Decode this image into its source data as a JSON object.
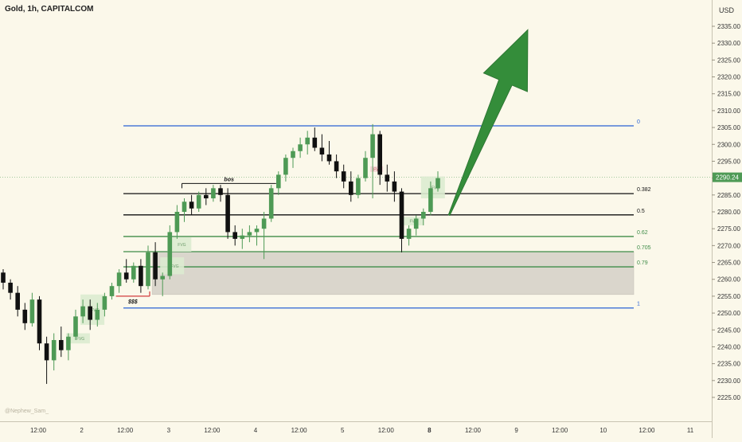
{
  "header": {
    "symbol_title": "Gold, 1h, CAPITALCOM",
    "currency": "USD",
    "watermark": "@Nephew_Sam_"
  },
  "colors": {
    "background": "#fbf8ea",
    "bull": "#4e9a55",
    "bear": "#111111",
    "fib_blue": "#2a62d4",
    "fib_black": "#111111",
    "fib_green": "#3f8c48",
    "zone_fill": "#dad6cc",
    "fvg_fill": "#dcebd0",
    "fvg_bear_fill": "#f4d7d7",
    "arrow": "#348d3a",
    "price_tag": "#4e9a55",
    "sweep_line": "#d23c3c"
  },
  "chart_data": {
    "type": "candlestick",
    "title": "Gold, 1h, CAPITALCOM",
    "currency": "USD",
    "y_ticks": [
      2225,
      2230,
      2235,
      2240,
      2245,
      2250,
      2255,
      2260,
      2265,
      2270,
      2275,
      2280,
      2285,
      2290,
      2295,
      2300,
      2305,
      2310,
      2315,
      2320,
      2325,
      2330,
      2335
    ],
    "ylim": [
      2224,
      2341
    ],
    "x_tick_labels": [
      "12:00",
      "2",
      "12:00",
      "3",
      "12:00",
      "4",
      "12:00",
      "5",
      "12:00",
      "8",
      "12:00",
      "9",
      "12:00",
      "10",
      "12:00",
      "11"
    ],
    "last_price": "2290.24",
    "candles": [
      {
        "o": 2262,
        "h": 2263,
        "l": 2257,
        "c": 2259
      },
      {
        "o": 2259,
        "h": 2260,
        "l": 2254,
        "c": 2256
      },
      {
        "o": 2256,
        "h": 2258,
        "l": 2249,
        "c": 2251
      },
      {
        "o": 2251,
        "h": 2253,
        "l": 2245,
        "c": 2247
      },
      {
        "o": 2247,
        "h": 2256,
        "l": 2246,
        "c": 2254
      },
      {
        "o": 2254,
        "h": 2255,
        "l": 2239,
        "c": 2241
      },
      {
        "o": 2241,
        "h": 2243,
        "l": 2229,
        "c": 2236
      },
      {
        "o": 2236,
        "h": 2244,
        "l": 2233,
        "c": 2242
      },
      {
        "o": 2242,
        "h": 2246,
        "l": 2237,
        "c": 2239
      },
      {
        "o": 2239,
        "h": 2244,
        "l": 2236,
        "c": 2243
      },
      {
        "o": 2243,
        "h": 2251,
        "l": 2242,
        "c": 2249
      },
      {
        "o": 2249,
        "h": 2254,
        "l": 2247,
        "c": 2252
      },
      {
        "o": 2252,
        "h": 2254,
        "l": 2245,
        "c": 2248
      },
      {
        "o": 2248,
        "h": 2253,
        "l": 2246,
        "c": 2251
      },
      {
        "o": 2251,
        "h": 2256,
        "l": 2249,
        "c": 2255
      },
      {
        "o": 2255,
        "h": 2259,
        "l": 2254,
        "c": 2258
      },
      {
        "o": 2258,
        "h": 2263,
        "l": 2256,
        "c": 2262
      },
      {
        "o": 2262,
        "h": 2266,
        "l": 2259,
        "c": 2260
      },
      {
        "o": 2260,
        "h": 2265,
        "l": 2259,
        "c": 2264
      },
      {
        "o": 2264,
        "h": 2266,
        "l": 2256,
        "c": 2258
      },
      {
        "o": 2258,
        "h": 2270,
        "l": 2257,
        "c": 2268
      },
      {
        "o": 2268,
        "h": 2271,
        "l": 2258,
        "c": 2260
      },
      {
        "o": 2260,
        "h": 2262,
        "l": 2255,
        "c": 2261
      },
      {
        "o": 2261,
        "h": 2276,
        "l": 2260,
        "c": 2274
      },
      {
        "o": 2274,
        "h": 2282,
        "l": 2272,
        "c": 2280
      },
      {
        "o": 2280,
        "h": 2284,
        "l": 2277,
        "c": 2283
      },
      {
        "o": 2283,
        "h": 2285,
        "l": 2279,
        "c": 2281
      },
      {
        "o": 2281,
        "h": 2286,
        "l": 2280,
        "c": 2285
      },
      {
        "o": 2285,
        "h": 2287,
        "l": 2282,
        "c": 2284
      },
      {
        "o": 2284,
        "h": 2288,
        "l": 2283,
        "c": 2287
      },
      {
        "o": 2287,
        "h": 2288,
        "l": 2283,
        "c": 2285
      },
      {
        "o": 2285,
        "h": 2287,
        "l": 2272,
        "c": 2274
      },
      {
        "o": 2274,
        "h": 2276,
        "l": 2270,
        "c": 2272
      },
      {
        "o": 2272,
        "h": 2275,
        "l": 2269,
        "c": 2273
      },
      {
        "o": 2273,
        "h": 2276,
        "l": 2271,
        "c": 2274
      },
      {
        "o": 2274,
        "h": 2276,
        "l": 2270,
        "c": 2275
      },
      {
        "o": 2275,
        "h": 2280,
        "l": 2266,
        "c": 2278
      },
      {
        "o": 2278,
        "h": 2288,
        "l": 2277,
        "c": 2287
      },
      {
        "o": 2287,
        "h": 2292,
        "l": 2285,
        "c": 2291
      },
      {
        "o": 2291,
        "h": 2297,
        "l": 2289,
        "c": 2296
      },
      {
        "o": 2296,
        "h": 2299,
        "l": 2293,
        "c": 2298
      },
      {
        "o": 2298,
        "h": 2302,
        "l": 2296,
        "c": 2300
      },
      {
        "o": 2300,
        "h": 2304,
        "l": 2297,
        "c": 2302
      },
      {
        "o": 2302,
        "h": 2305,
        "l": 2298,
        "c": 2299
      },
      {
        "o": 2299,
        "h": 2303,
        "l": 2295,
        "c": 2297
      },
      {
        "o": 2297,
        "h": 2301,
        "l": 2294,
        "c": 2295
      },
      {
        "o": 2295,
        "h": 2297,
        "l": 2290,
        "c": 2292
      },
      {
        "o": 2292,
        "h": 2294,
        "l": 2287,
        "c": 2289
      },
      {
        "o": 2289,
        "h": 2292,
        "l": 2283,
        "c": 2285
      },
      {
        "o": 2285,
        "h": 2291,
        "l": 2284,
        "c": 2290
      },
      {
        "o": 2290,
        "h": 2298,
        "l": 2289,
        "c": 2296
      },
      {
        "o": 2296,
        "h": 2306,
        "l": 2284,
        "c": 2303
      },
      {
        "o": 2303,
        "h": 2304,
        "l": 2288,
        "c": 2291
      },
      {
        "o": 2291,
        "h": 2294,
        "l": 2286,
        "c": 2289
      },
      {
        "o": 2289,
        "h": 2292,
        "l": 2283,
        "c": 2286
      },
      {
        "o": 2286,
        "h": 2287,
        "l": 2268,
        "c": 2272
      },
      {
        "o": 2272,
        "h": 2276,
        "l": 2270,
        "c": 2275
      },
      {
        "o": 2275,
        "h": 2279,
        "l": 2273,
        "c": 2278
      },
      {
        "o": 2278,
        "h": 2281,
        "l": 2276,
        "c": 2280
      },
      {
        "o": 2280,
        "h": 2289,
        "l": 2279,
        "c": 2287
      },
      {
        "o": 2287,
        "h": 2292,
        "l": 2286,
        "c": 2290
      }
    ],
    "fib_levels": [
      {
        "label": "0",
        "price": 2305.5,
        "color": "fib_blue"
      },
      {
        "label": "0.382",
        "price": 2285.4,
        "color": "fib_black"
      },
      {
        "label": "0.5",
        "price": 2279.1,
        "color": "fib_black"
      },
      {
        "label": "0.62",
        "price": 2272.7,
        "color": "fib_green"
      },
      {
        "label": "0.705",
        "price": 2268.2,
        "color": "fib_green"
      },
      {
        "label": "0.79",
        "price": 2263.7,
        "color": "fib_green"
      },
      {
        "label": "1",
        "price": 2251.5,
        "color": "fib_blue"
      }
    ],
    "zone": {
      "top": 2268.2,
      "bottom": 2255.5,
      "from_candle": 21
    },
    "fvgs": [
      {
        "label": "FVG",
        "candle": 9,
        "top": 2244.0,
        "bottom": 2241.0
      },
      {
        "label": "FVG",
        "candle": 11,
        "top": 2255.5,
        "bottom": 2246.5
      },
      {
        "label": "FVG",
        "candle": 22,
        "top": 2266.5,
        "bottom": 2261.5
      },
      {
        "label": "FVG",
        "candle": 23,
        "top": 2272.5,
        "bottom": 2268.2
      },
      {
        "label": "FVG",
        "candle": 58,
        "top": 2290.5,
        "bottom": 2284.0
      },
      {
        "label": "FVG",
        "candle": 55,
        "top": 2278.5,
        "bottom": 2276.0
      }
    ],
    "bear_fvg": {
      "label": "FVG",
      "candle": 51,
      "price": 2292
    },
    "bos": {
      "label": "bos",
      "price": 2288.4,
      "from_candle": 25,
      "to_candle": 38
    },
    "liquidity": {
      "label": "$$$",
      "price": 2255.0,
      "from_candle": 16,
      "to_candle": 20
    },
    "arrow": {
      "from_candle": 61,
      "from_price": 2279,
      "to_candle": 70,
      "to_price": 2334
    }
  }
}
